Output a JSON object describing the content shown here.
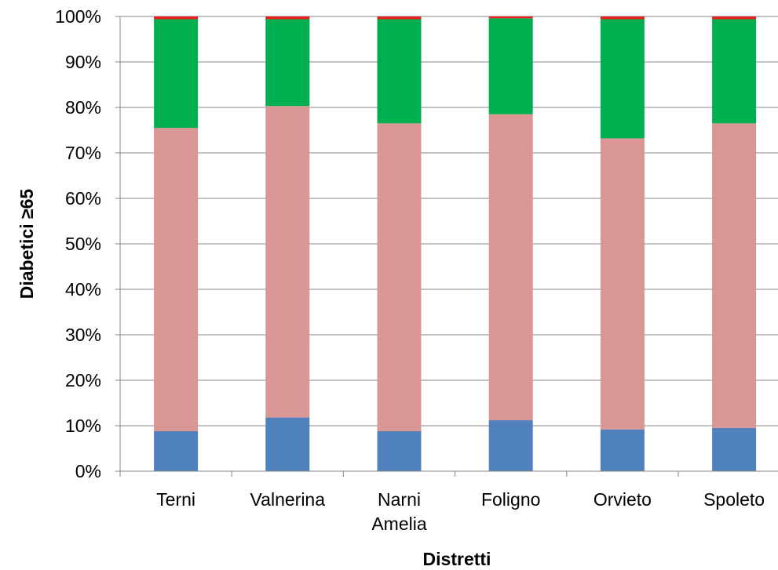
{
  "chart_data": {
    "type": "bar",
    "stacked": true,
    "percent_stacked": true,
    "title": "",
    "xlabel": "Distretti",
    "ylabel": "Diabetici ≥65",
    "ylim": [
      0,
      100
    ],
    "y_ticks": [
      "0%",
      "10%",
      "20%",
      "30%",
      "40%",
      "50%",
      "60%",
      "70%",
      "80%",
      "90%",
      "100%"
    ],
    "grid": true,
    "legend": "none",
    "categories": [
      [
        "Terni"
      ],
      [
        "Valnerina"
      ],
      [
        "Narni",
        "Amelia"
      ],
      [
        "Foligno"
      ],
      [
        "Orvieto"
      ],
      [
        "Spoleto"
      ]
    ],
    "series": [
      {
        "color": "#4F81BD",
        "values": [
          8.8,
          11.8,
          8.8,
          11.2,
          9.2,
          9.5
        ]
      },
      {
        "color": "#D99694",
        "values": [
          66.7,
          68.5,
          67.7,
          67.3,
          64.0,
          67.0
        ]
      },
      {
        "color": "#00B050",
        "values": [
          23.9,
          19.1,
          22.9,
          21.1,
          26.2,
          22.9
        ]
      },
      {
        "color": "#E81E1E",
        "values": [
          0.6,
          0.6,
          0.6,
          0.4,
          0.6,
          0.6
        ]
      }
    ]
  }
}
